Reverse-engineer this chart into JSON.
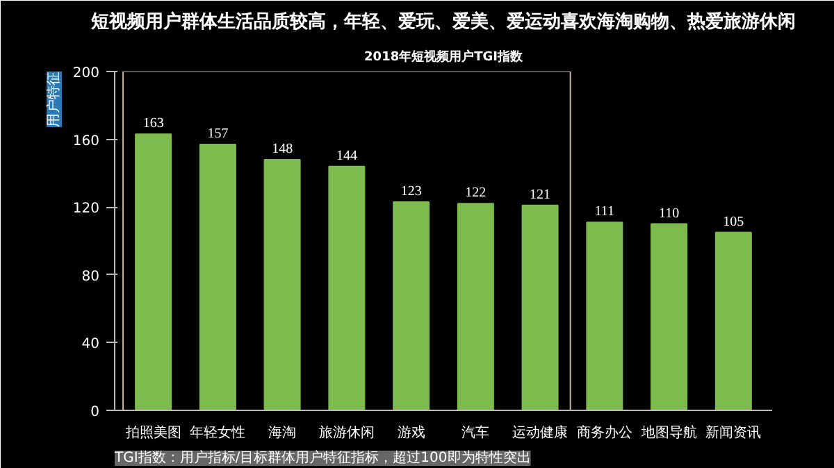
{
  "chart_data": {
    "type": "bar",
    "title": "短视频用户群体生活品质较高，年轻、爱玩、爱美、爱运动喜欢海淘购物、热爱旅游休闲",
    "subtitle": "2018年短视频用户TGI指数",
    "categories": [
      "拍照美图",
      "年轻女性",
      "海淘",
      "旅游休闲",
      "游戏",
      "汽车",
      "运动健康",
      "商务办公",
      "地图导航",
      "新闻资讯"
    ],
    "values": [
      163,
      157,
      148,
      144,
      123,
      122,
      121,
      111,
      110,
      105
    ],
    "color": "#7dbb4e",
    "ylim": [
      0,
      200
    ],
    "yticks": [
      0,
      40,
      80,
      120,
      160,
      200
    ],
    "grid": false,
    "data_labels": true,
    "annotations": [
      "用户特征",
      "TGI指数：用户指标/目标群体用户特征指标，超过100即为特性突出"
    ]
  }
}
